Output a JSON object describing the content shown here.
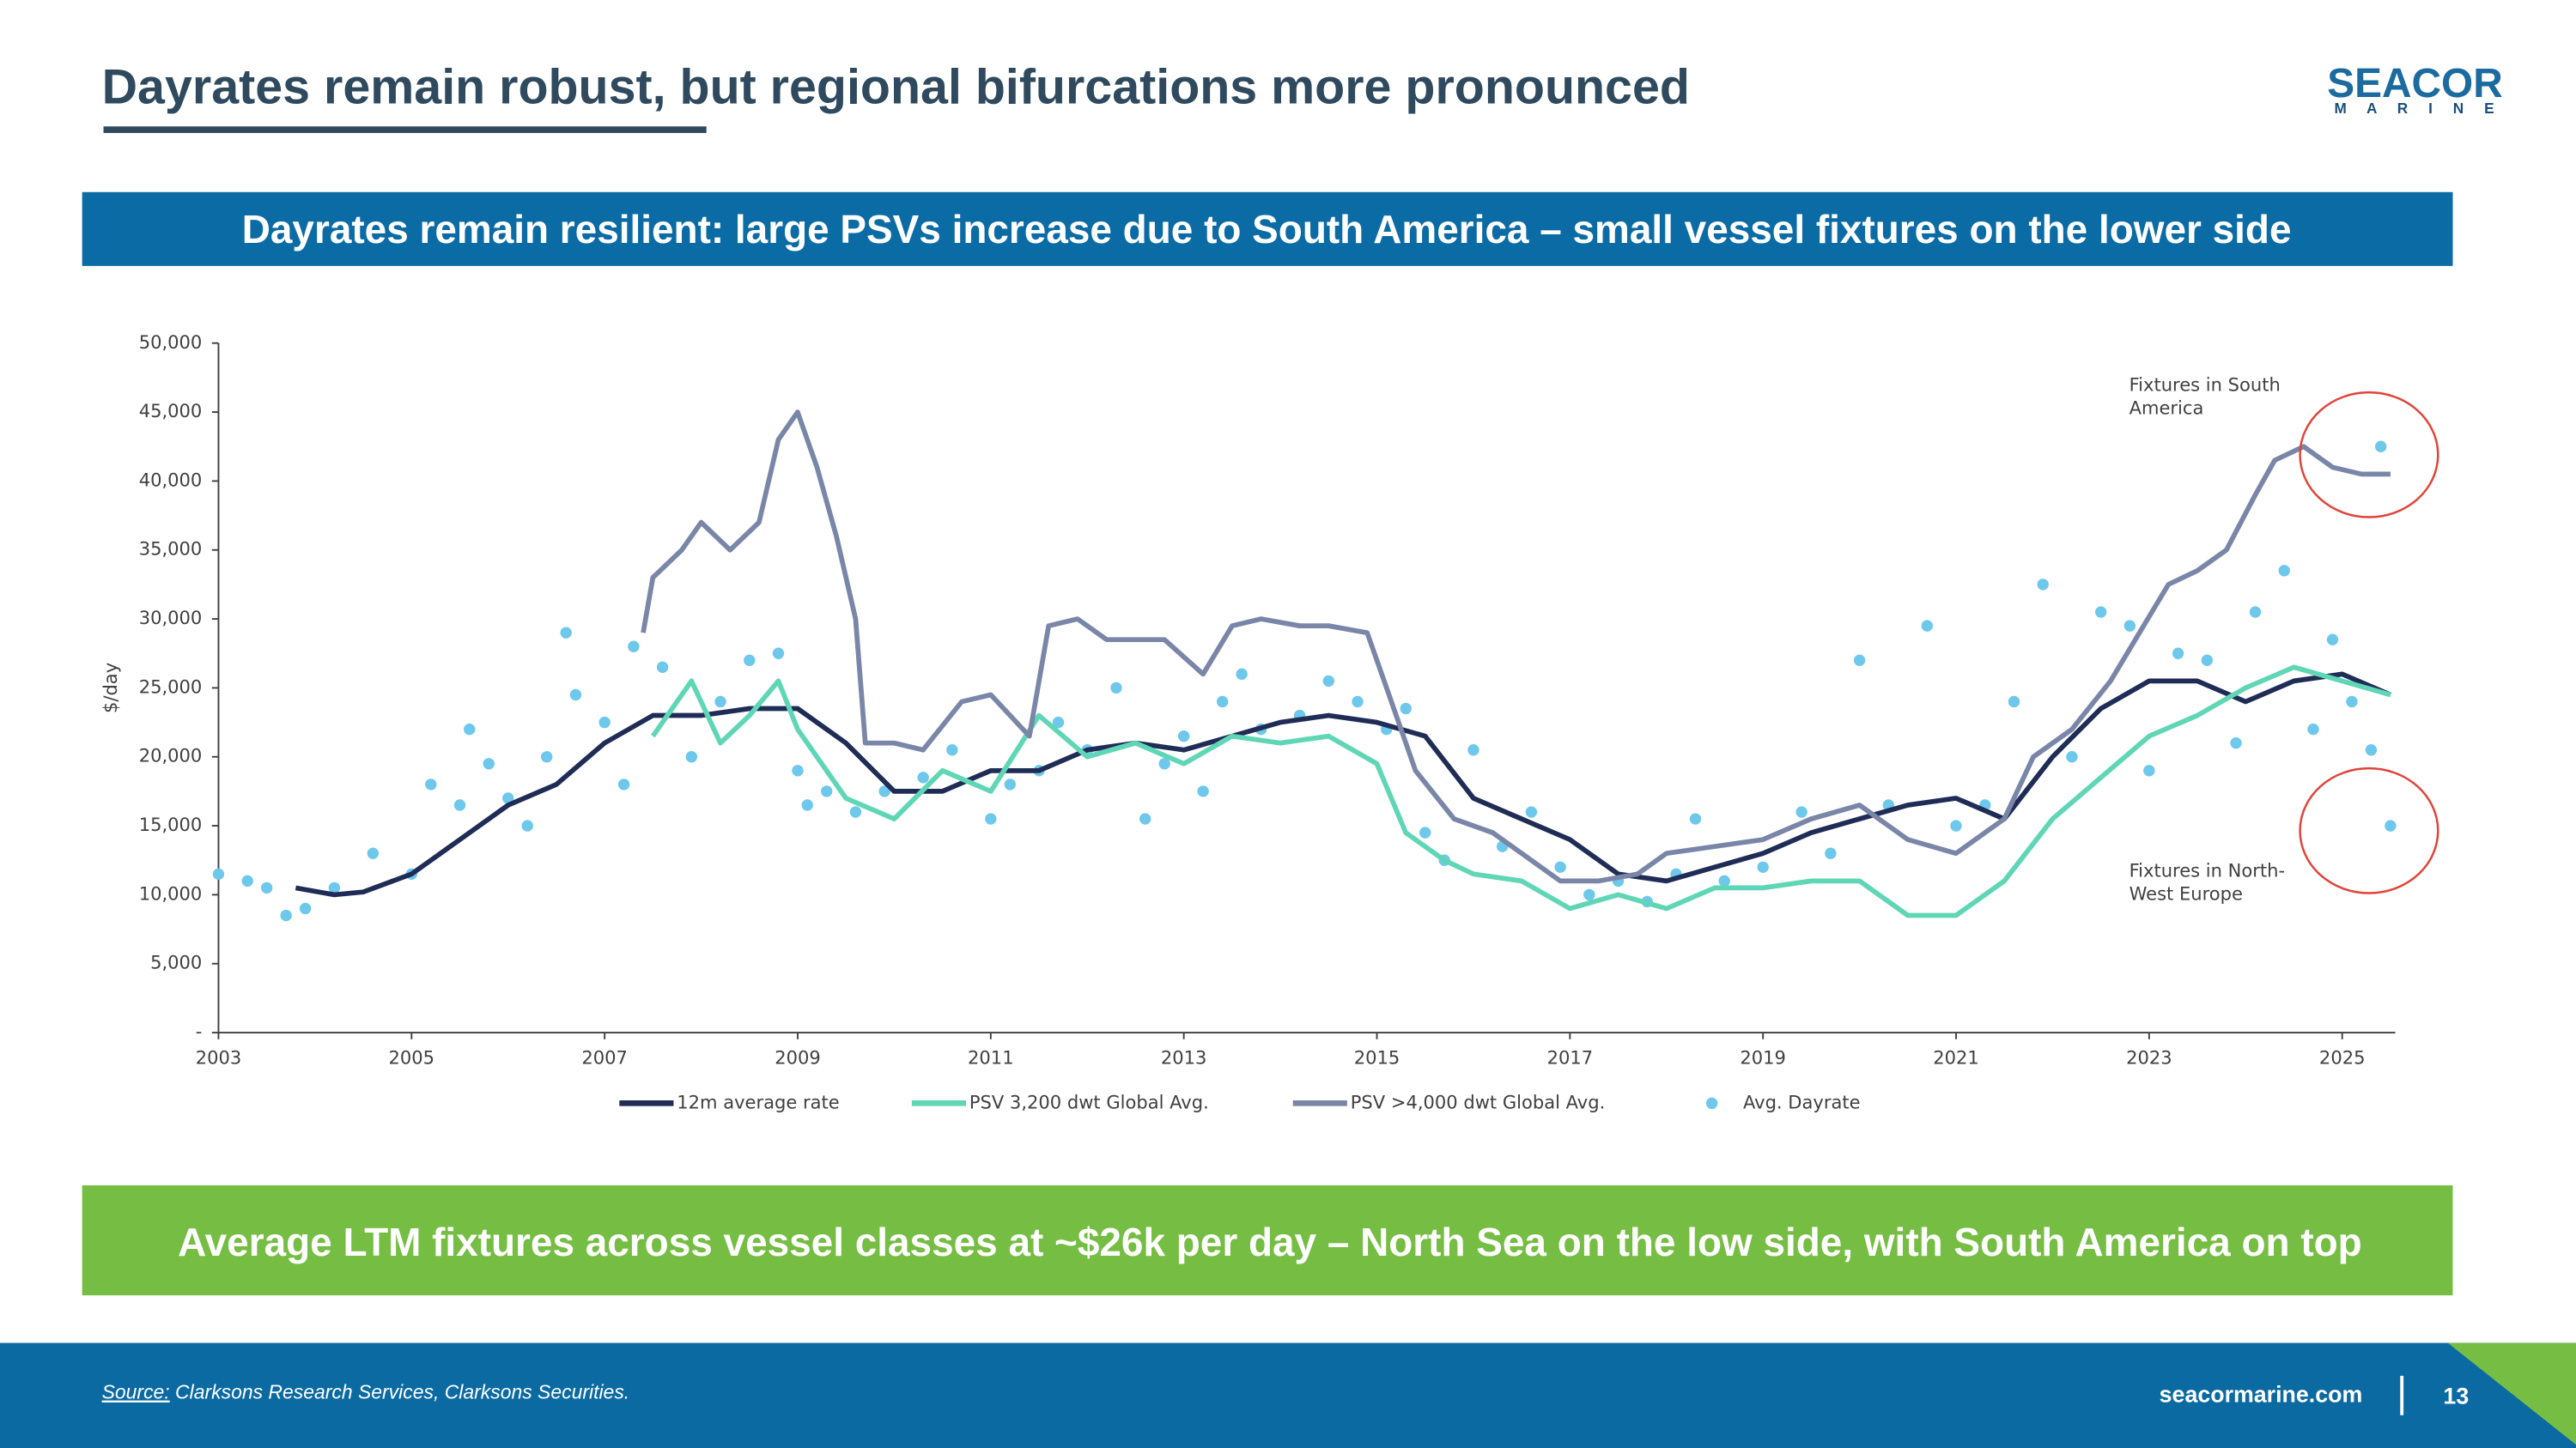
{
  "header": {
    "title": "Dayrates remain robust, but regional bifurcations more pronounced",
    "logo": {
      "name": "SEACOR",
      "sub": "M A R I N E"
    }
  },
  "banner_top": "Dayrates remain resilient: large PSVs increase due to South America – small vessel fixtures on the lower side",
  "banner_bottom": "Average LTM fixtures across vessel classes at ~$26k per day – North Sea on the low side, with South America on top",
  "footer": {
    "source_label": "Source:",
    "source_text": "Clarksons Research Services, Clarksons Securities.",
    "website": "seacormarine.com",
    "page": "13"
  },
  "chart_data": {
    "type": "line",
    "y_label": "$/day",
    "xlim": [
      2003,
      2025.55
    ],
    "xticks": [
      2003,
      2005,
      2007,
      2009,
      2011,
      2013,
      2015,
      2017,
      2019,
      2021,
      2023,
      2025
    ],
    "ylim": [
      0,
      50000
    ],
    "yticks": [
      {
        "value": 0,
        "label": "-"
      },
      {
        "value": 5000,
        "label": "5,000"
      },
      {
        "value": 10000,
        "label": "10,000"
      },
      {
        "value": 15000,
        "label": "15,000"
      },
      {
        "value": 20000,
        "label": "20,000"
      },
      {
        "value": 25000,
        "label": "25,000"
      },
      {
        "value": 30000,
        "label": "30,000"
      },
      {
        "value": 35000,
        "label": "35,000"
      },
      {
        "value": 40000,
        "label": "40,000"
      },
      {
        "value": 45000,
        "label": "45,000"
      },
      {
        "value": 50000,
        "label": "50,000"
      }
    ],
    "legend": "bottom",
    "series": [
      {
        "name": "12m average rate",
        "color": "#1f2d56",
        "type": "line",
        "x": [
          2003.8,
          2004.2,
          2004.5,
          2005,
          2005.5,
          2006,
          2006.5,
          2007,
          2007.5,
          2008,
          2008.5,
          2009,
          2009.5,
          2010,
          2010.5,
          2011,
          2011.5,
          2012,
          2012.5,
          2013,
          2013.5,
          2014,
          2014.5,
          2015,
          2015.5,
          2016,
          2016.5,
          2017,
          2017.5,
          2018,
          2018.5,
          2019,
          2019.5,
          2020,
          2020.5,
          2021,
          2021.5,
          2022,
          2022.5,
          2023,
          2023.5,
          2024,
          2024.5,
          2025,
          2025.5
        ],
        "values": [
          10500,
          10000,
          10200,
          11500,
          14000,
          16500,
          18000,
          21000,
          23000,
          23000,
          23500,
          23500,
          21000,
          17500,
          17500,
          19000,
          19000,
          20500,
          21000,
          20500,
          21500,
          22500,
          23000,
          22500,
          21500,
          17000,
          15500,
          14000,
          11500,
          11000,
          12000,
          13000,
          14500,
          15500,
          16500,
          17000,
          15500,
          20000,
          23500,
          25500,
          25500,
          24000,
          25500,
          26000,
          24500
        ]
      },
      {
        "name": "PSV 3,200 dwt Global Avg.",
        "color": "#5fd6b5",
        "type": "line",
        "x": [
          2007.5,
          2007.9,
          2008.2,
          2008.5,
          2008.8,
          2009,
          2009.5,
          2010,
          2010.5,
          2011,
          2011.5,
          2012,
          2012.5,
          2013,
          2013.5,
          2014,
          2014.5,
          2015,
          2015.3,
          2015.7,
          2016,
          2016.5,
          2017,
          2017.5,
          2018,
          2018.5,
          2019,
          2019.5,
          2020,
          2020.5,
          2021,
          2021.5,
          2022,
          2022.5,
          2023,
          2023.5,
          2024,
          2024.5,
          2025,
          2025.5
        ],
        "values": [
          21500,
          25500,
          21000,
          23000,
          25500,
          22000,
          17000,
          15500,
          19000,
          17500,
          23000,
          20000,
          21000,
          19500,
          21500,
          21000,
          21500,
          19500,
          14500,
          12500,
          11500,
          11000,
          9000,
          10000,
          9000,
          10500,
          10500,
          11000,
          11000,
          8500,
          8500,
          11000,
          15500,
          18500,
          21500,
          23000,
          25000,
          26500,
          25500,
          24500
        ]
      },
      {
        "name": "PSV >4,000 dwt Global Avg.",
        "color": "#7a86a8",
        "type": "line",
        "x": [
          2007.4,
          2007.5,
          2007.8,
          2008,
          2008.3,
          2008.6,
          2008.8,
          2009,
          2009.2,
          2009.4,
          2009.6,
          2009.7,
          2010,
          2010.3,
          2010.7,
          2011,
          2011.4,
          2011.6,
          2011.9,
          2012.2,
          2012.5,
          2012.8,
          2013.2,
          2013.5,
          2013.8,
          2014.2,
          2014.5,
          2014.9,
          2015.1,
          2015.4,
          2015.8,
          2016.2,
          2016.6,
          2016.9,
          2017.3,
          2017.7,
          2018,
          2018.5,
          2019,
          2019.5,
          2020,
          2020.5,
          2021,
          2021.5,
          2021.8,
          2022.2,
          2022.6,
          2022.9,
          2023.2,
          2023.5,
          2023.8,
          2024.1,
          2024.3,
          2024.6,
          2024.9,
          2025.2,
          2025.5
        ],
        "values": [
          29000,
          33000,
          35000,
          37000,
          35000,
          37000,
          43000,
          45000,
          41000,
          36000,
          30000,
          21000,
          21000,
          20500,
          24000,
          24500,
          21500,
          29500,
          30000,
          28500,
          28500,
          28500,
          26000,
          29500,
          30000,
          29500,
          29500,
          29000,
          25000,
          19000,
          15500,
          14500,
          12500,
          11000,
          11000,
          11500,
          13000,
          13500,
          14000,
          15500,
          16500,
          14000,
          13000,
          15500,
          20000,
          22000,
          25500,
          29000,
          32500,
          33500,
          35000,
          39000,
          41500,
          42500,
          41000,
          40500,
          40500
        ]
      },
      {
        "name": "Avg. Dayrate",
        "color": "#6ec8ec",
        "type": "scatter",
        "x": [
          2003.0,
          2003.3,
          2003.5,
          2003.7,
          2003.9,
          2004.2,
          2004.6,
          2005,
          2005.2,
          2005.5,
          2005.6,
          2005.8,
          2006,
          2006.2,
          2006.4,
          2006.6,
          2006.7,
          2007,
          2007.2,
          2007.3,
          2007.6,
          2007.9,
          2008.2,
          2008.5,
          2008.8,
          2009,
          2009.1,
          2009.3,
          2009.6,
          2009.9,
          2010.3,
          2010.6,
          2011,
          2011.2,
          2011.5,
          2011.7,
          2012,
          2012.3,
          2012.6,
          2012.8,
          2013,
          2013.2,
          2013.4,
          2013.6,
          2013.8,
          2014.2,
          2014.5,
          2014.8,
          2015.1,
          2015.3,
          2015.5,
          2015.7,
          2016,
          2016.3,
          2016.6,
          2016.9,
          2017.2,
          2017.5,
          2017.8,
          2018.1,
          2018.3,
          2018.6,
          2019,
          2019.4,
          2019.7,
          2020,
          2020.3,
          2020.7,
          2021,
          2021.3,
          2021.6,
          2021.9,
          2022.2,
          2022.5,
          2022.8,
          2023,
          2023.3,
          2023.6,
          2023.9,
          2024.1,
          2024.4,
          2024.7,
          2024.9,
          2025.1,
          2025.3,
          2025.4,
          2025.5
        ],
        "values": [
          11500,
          11000,
          10500,
          8500,
          9000,
          10500,
          13000,
          11500,
          18000,
          16500,
          22000,
          19500,
          17000,
          15000,
          20000,
          29000,
          24500,
          22500,
          18000,
          28000,
          26500,
          20000,
          24000,
          27000,
          27500,
          19000,
          16500,
          17500,
          16000,
          17500,
          18500,
          20500,
          15500,
          18000,
          19000,
          22500,
          20500,
          25000,
          15500,
          19500,
          21500,
          17500,
          24000,
          26000,
          22000,
          23000,
          25500,
          24000,
          22000,
          23500,
          14500,
          12500,
          20500,
          13500,
          16000,
          12000,
          10000,
          11000,
          9500,
          11500,
          15500,
          11000,
          12000,
          16000,
          13000,
          27000,
          16500,
          29500,
          15000,
          16500,
          24000,
          32500,
          20000,
          30500,
          29500,
          19000,
          27500,
          27000,
          21000,
          30500,
          33500,
          22000,
          28500,
          24000,
          20500,
          42500,
          15000
        ]
      }
    ],
    "annotations": [
      {
        "lines": [
          "Fixtures in South",
          "America"
        ]
      },
      {
        "lines": [
          "Fixtures in North-",
          "West Europe"
        ]
      }
    ]
  }
}
